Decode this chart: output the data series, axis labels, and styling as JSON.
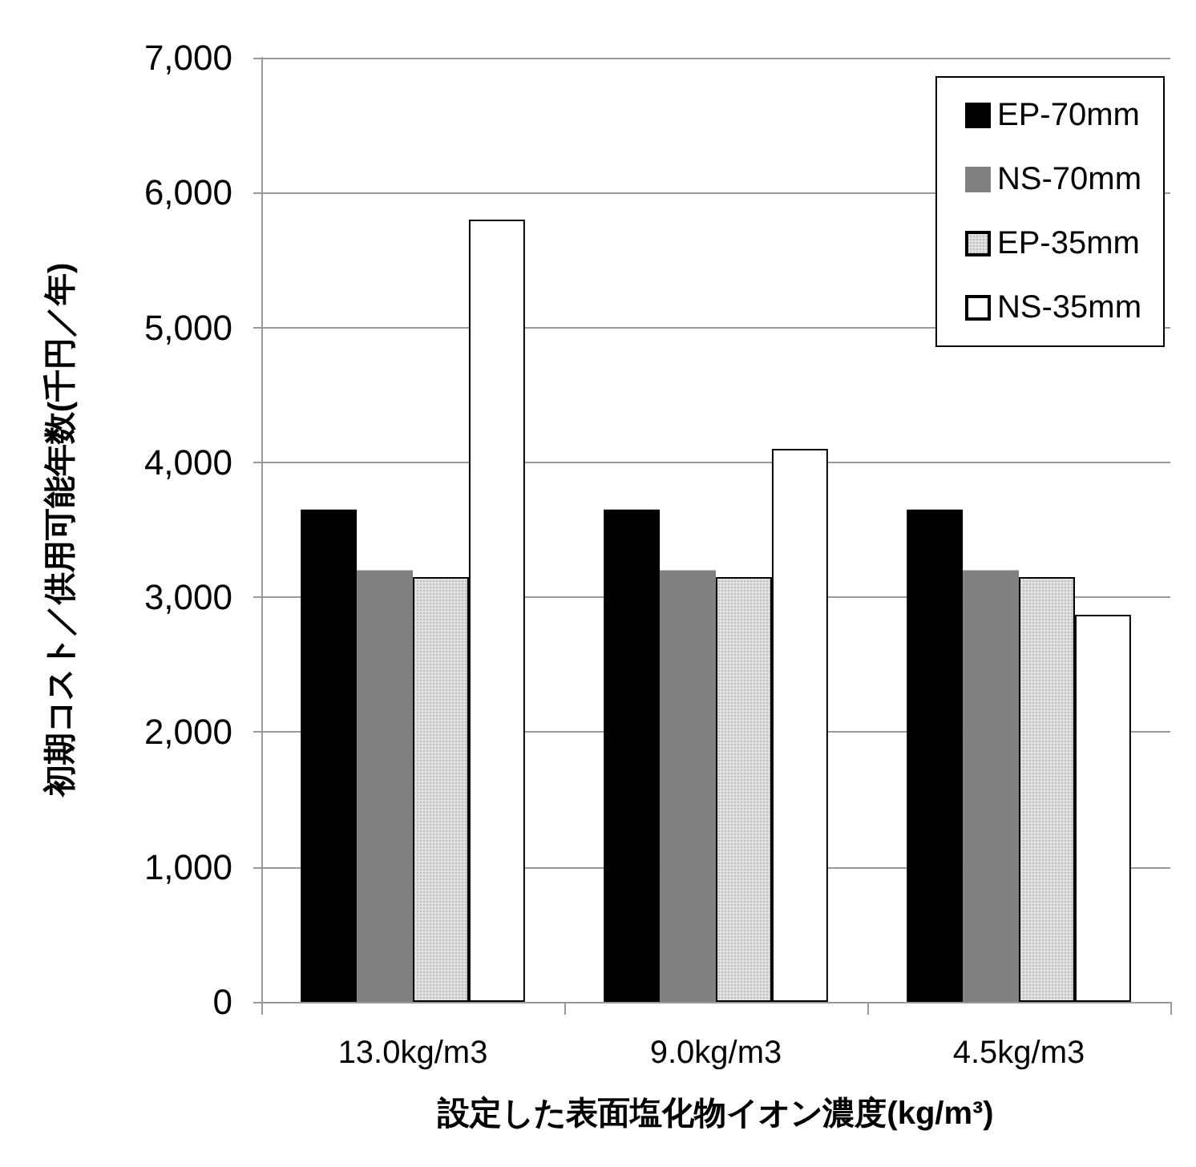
{
  "chart_data": {
    "type": "bar",
    "xlabel": "設定した表面塩化物イオン濃度(kg/m³)",
    "ylabel": "初期コスト／供用可能年数(千円／年)",
    "categories": [
      "13.0kg/m3",
      "9.0kg/m3",
      "4.5kg/m3"
    ],
    "series": [
      {
        "name": "EP-70mm",
        "color": "#000000",
        "values": [
          3650,
          3650,
          3650
        ]
      },
      {
        "name": "NS-70mm",
        "color": "#808080",
        "values": [
          3200,
          3200,
          3200
        ]
      },
      {
        "name": "EP-35mm",
        "color": "#e0e0e0",
        "values": [
          3150,
          3150,
          3150
        ]
      },
      {
        "name": "NS-35mm",
        "color": "#ffffff",
        "values": [
          5800,
          4100,
          2870
        ]
      }
    ],
    "ylim": [
      0,
      7000
    ],
    "yticks": [
      {
        "value": 0,
        "label": "0"
      },
      {
        "value": 1000,
        "label": "1,000"
      },
      {
        "value": 2000,
        "label": "2,000"
      },
      {
        "value": 3000,
        "label": "3,000"
      },
      {
        "value": 4000,
        "label": "4,000"
      },
      {
        "value": 5000,
        "label": "5,000"
      },
      {
        "value": 6000,
        "label": "6,000"
      },
      {
        "value": 7000,
        "label": "7,000"
      }
    ],
    "grid": "y",
    "legend": "top right"
  }
}
